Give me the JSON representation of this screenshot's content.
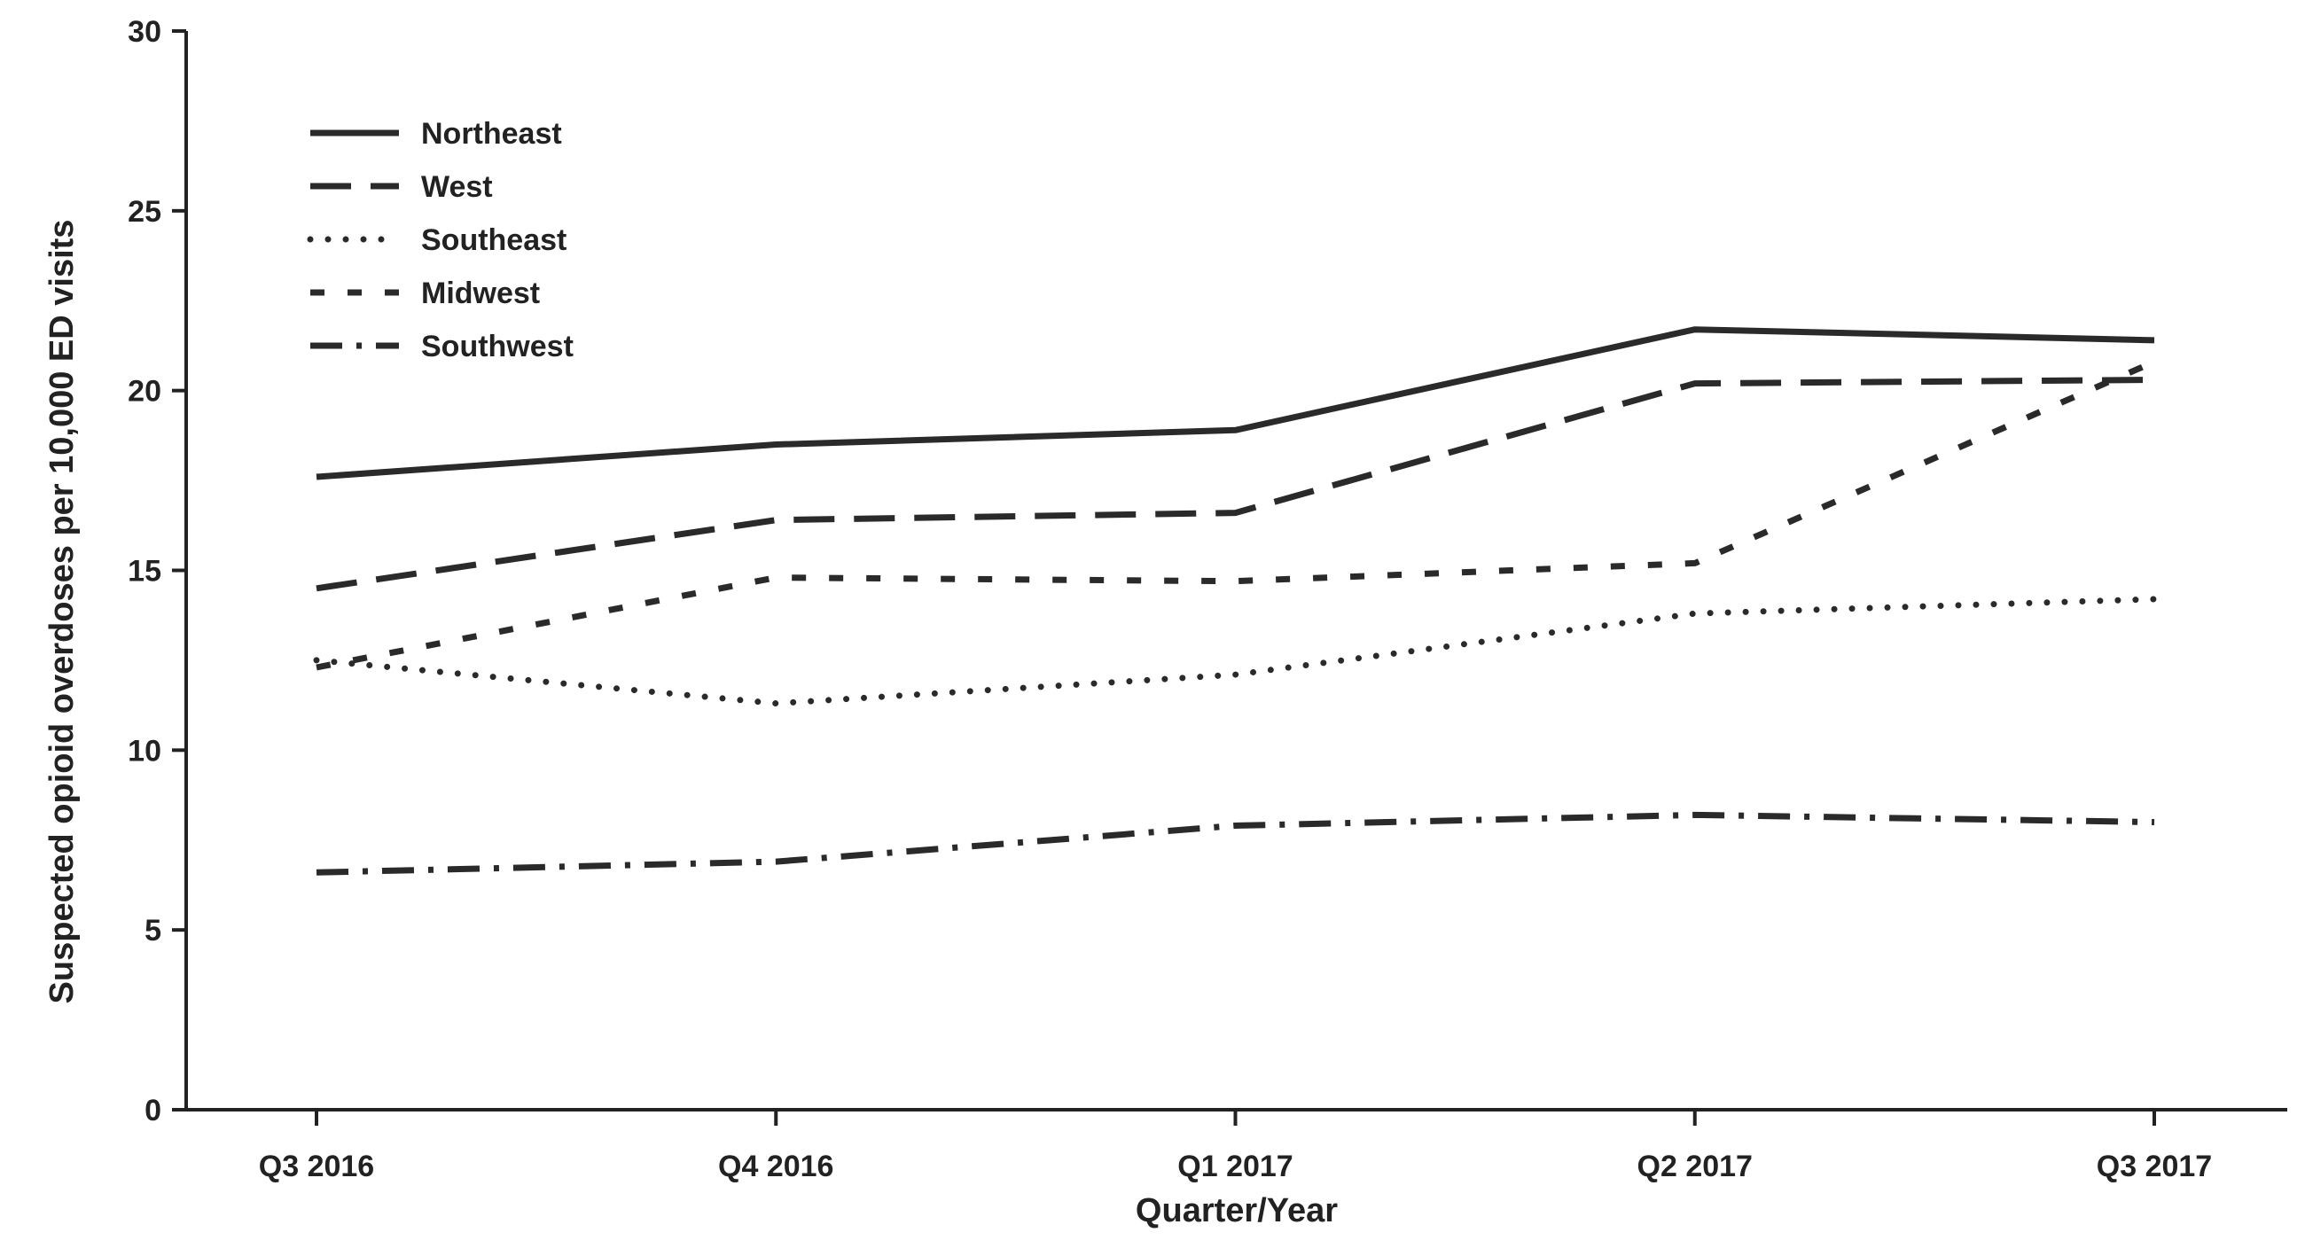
{
  "chart_data": {
    "type": "line",
    "title": "",
    "xlabel": "Quarter/Year",
    "ylabel": "Suspected opioid overdoses per 10,000 ED visits",
    "categories": [
      "Q3 2016",
      "Q4 2016",
      "Q1 2017",
      "Q2 2017",
      "Q3 2017"
    ],
    "ylim": [
      0,
      30
    ],
    "yticks": [
      0,
      5,
      10,
      15,
      20,
      25,
      30
    ],
    "grid": false,
    "legend_position": "top-left",
    "series": [
      {
        "name": "Northeast",
        "style": "solid",
        "values": [
          17.6,
          18.5,
          18.9,
          21.7,
          21.4
        ]
      },
      {
        "name": "West",
        "style": "dashed",
        "values": [
          14.5,
          16.4,
          16.6,
          20.2,
          20.3
        ]
      },
      {
        "name": "Southeast",
        "style": "dotted",
        "values": [
          12.5,
          11.3,
          12.1,
          13.8,
          14.2
        ]
      },
      {
        "name": "Midwest",
        "style": "short-dash",
        "values": [
          12.3,
          14.8,
          14.7,
          15.2,
          20.8
        ]
      },
      {
        "name": "Southwest",
        "style": "dash-dot",
        "values": [
          6.6,
          6.9,
          7.9,
          8.2,
          8.0
        ]
      }
    ],
    "line_color": "#2a2a2a"
  }
}
